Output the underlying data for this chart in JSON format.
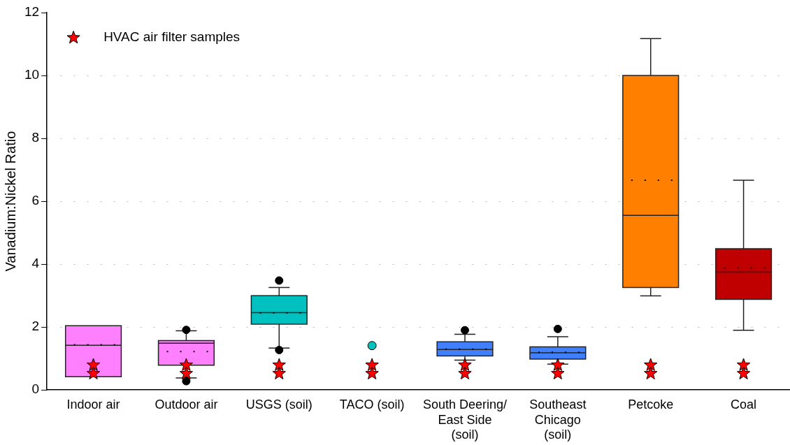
{
  "chart_data": {
    "type": "box",
    "ylabel": "Vanadium:Nickel Ratio",
    "categories": [
      "Indoor air",
      "Outdoor air",
      "USGS (soil)",
      "TACO (soil)",
      "South Deering/\nEast Side\n(soil)",
      "Southeast\nChicago\n(soil)",
      "Petcoke",
      "Coal"
    ],
    "ylim": [
      0,
      12
    ],
    "yticks": [
      0,
      2,
      4,
      6,
      8,
      10,
      12
    ],
    "grid": "y",
    "legend": "top left",
    "series": [
      {
        "colors": [
          "#ff80ff",
          "#ff80ff",
          "#00c0c0",
          null,
          "#4080ff",
          "#4080ff",
          "#ff8000",
          "#c00000"
        ],
        "boxes": [
          {
            "low": 0.42,
            "q1": 0.42,
            "median": 1.42,
            "q3": 2.04,
            "high": 2.04,
            "mean": 1.44
          },
          {
            "low": 0.38,
            "q1": 0.79,
            "median": 1.49,
            "q3": 1.57,
            "high": 1.88,
            "mean": 1.22,
            "outliers": [
              1.91,
              0.28
            ]
          },
          {
            "low": 1.33,
            "q1": 2.09,
            "median": 2.46,
            "q3": 3.0,
            "high": 3.26,
            "mean": 2.45,
            "outliers": [
              3.48,
              1.27
            ]
          },
          null,
          {
            "low": 0.95,
            "q1": 1.08,
            "median": 1.29,
            "q3": 1.53,
            "high": 1.77,
            "mean": 1.3,
            "outliers": [
              1.9
            ]
          },
          {
            "low": 0.82,
            "q1": 0.98,
            "median": 1.18,
            "q3": 1.37,
            "high": 1.69,
            "mean": 1.2,
            "outliers": [
              1.94
            ]
          },
          {
            "low": 2.99,
            "q1": 3.26,
            "median": 5.55,
            "q3": 10.0,
            "high": 11.17,
            "mean": 6.67
          },
          {
            "low": 1.9,
            "q1": 2.88,
            "median": 3.75,
            "q3": 4.49,
            "high": 6.67,
            "mean": 3.88
          }
        ]
      },
      {
        "type": "scatter",
        "color": "#00c0c0",
        "marker": "circle",
        "x": [
          "TACO (soil)"
        ],
        "values": [
          1.41
        ]
      },
      {
        "type": "scatter",
        "name": "HVAC air filter samples",
        "color": "#ff0000",
        "marker": "star",
        "x": [
          "Indoor air",
          "Indoor air",
          "Outdoor air",
          "Outdoor air",
          "USGS (soil)",
          "USGS (soil)",
          "TACO (soil)",
          "TACO (soil)",
          "South Deering/\nEast Side\n(soil)",
          "South Deering/\nEast Side\n(soil)",
          "Southeast\nChicago\n(soil)",
          "Southeast\nChicago\n(soil)",
          "Petcoke",
          "Petcoke",
          "Coal",
          "Coal"
        ],
        "values": [
          0.79,
          0.52,
          0.79,
          0.52,
          0.79,
          0.52,
          0.79,
          0.52,
          0.79,
          0.52,
          0.79,
          0.52,
          0.79,
          0.52,
          0.79,
          0.52
        ]
      }
    ]
  }
}
